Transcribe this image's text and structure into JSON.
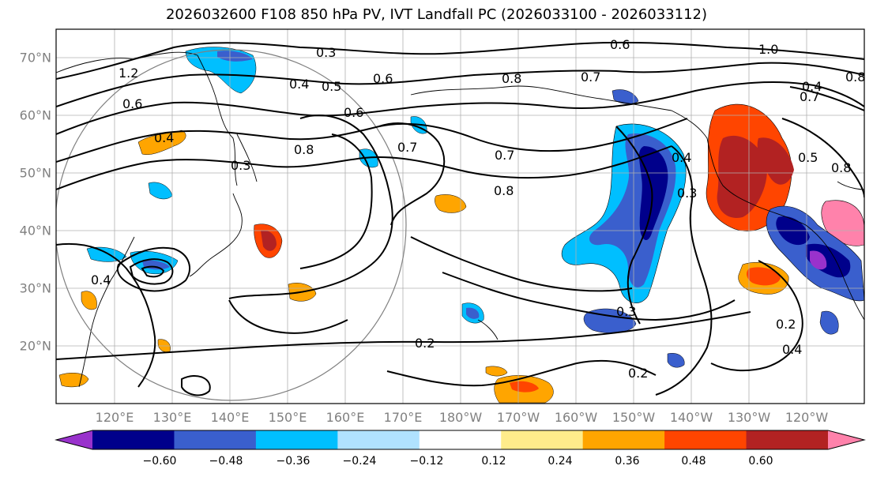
{
  "title": "2026032600 F108 850 hPa PV, IVT Landfall PC (2026033100 - 2026033112)",
  "map": {
    "lat_labels": [
      "70°N",
      "60°N",
      "50°N",
      "40°N",
      "30°N",
      "20°N"
    ],
    "lon_labels": [
      "120°E",
      "130°E",
      "140°E",
      "150°E",
      "160°E",
      "170°E",
      "180°W",
      "170°W",
      "160°W",
      "150°W",
      "140°W",
      "130°W",
      "120°W"
    ],
    "contour_labels": [
      "0.3",
      "0.6",
      "1.0",
      "1.2",
      "0.6",
      "0.4",
      "0.5",
      "0.6",
      "0.8",
      "0.7",
      "0.8",
      "0.4",
      "0.6",
      "0.7",
      "0.4",
      "0.7",
      "0.8",
      "0.7",
      "0.8",
      "0.5",
      "0.8",
      "0.4",
      "0.3",
      "0.4",
      "0.2",
      "0.2",
      "0.3",
      "0.2",
      "0.4",
      "0.3"
    ]
  },
  "colorbar": {
    "colors": [
      "#9932CC",
      "#00008B",
      "#3A5FCD",
      "#00BFFF",
      "#B0E2FF",
      "#FFFFFF",
      "#FFEC8B",
      "#FFA500",
      "#FF4500",
      "#B22222",
      "#FF82AB"
    ],
    "ticks": [
      "−0.60",
      "−0.48",
      "−0.36",
      "−0.24",
      "−0.12",
      "0.12",
      "0.24",
      "0.36",
      "0.48",
      "0.60"
    ]
  }
}
